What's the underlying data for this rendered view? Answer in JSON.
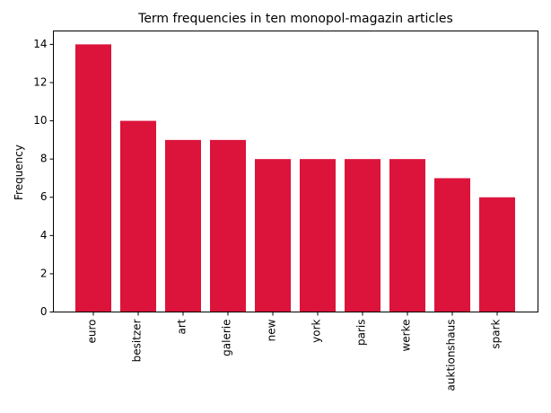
{
  "chart_data": {
    "type": "bar",
    "title": "Term frequencies in ten monopol-magazin articles",
    "xlabel": "",
    "ylabel": "Frequency",
    "categories": [
      "euro",
      "besitzer",
      "art",
      "galerie",
      "new",
      "york",
      "paris",
      "werke",
      "auktionshaus",
      "spark"
    ],
    "values": [
      14,
      10,
      9,
      9,
      8,
      8,
      8,
      8,
      7,
      6
    ],
    "ylim": [
      0,
      14.7
    ],
    "yticks": [
      0,
      2,
      4,
      6,
      8,
      10,
      12,
      14
    ],
    "grid": false,
    "bar_color": "#dc143c"
  }
}
